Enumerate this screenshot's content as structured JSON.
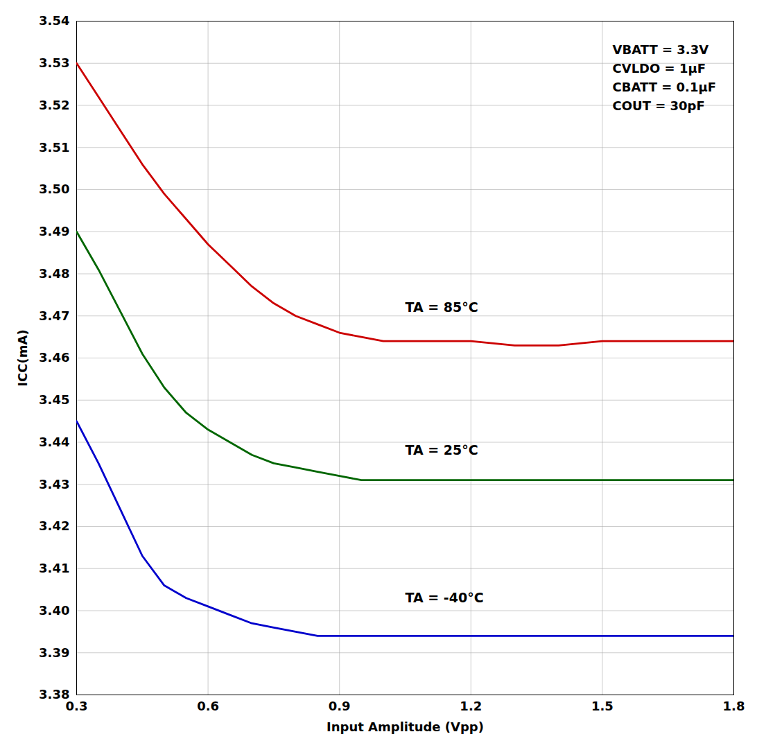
{
  "chart_data": {
    "type": "line",
    "xlabel": "Input Amplitude (Vpp)",
    "ylabel": "ICC(mA)",
    "x": [
      0.3,
      0.35,
      0.4,
      0.45,
      0.5,
      0.55,
      0.6,
      0.65,
      0.7,
      0.75,
      0.8,
      0.85,
      0.9,
      0.95,
      1.0,
      1.05,
      1.1,
      1.2,
      1.3,
      1.4,
      1.5,
      1.6,
      1.7,
      1.8
    ],
    "series": [
      {
        "color": "#cc0000",
        "values": [
          3.53,
          3.522,
          3.514,
          3.506,
          3.499,
          3.493,
          3.487,
          3.482,
          3.477,
          3.473,
          3.47,
          3.468,
          3.466,
          3.465,
          3.464,
          3.464,
          3.464,
          3.464,
          3.463,
          3.463,
          3.464,
          3.464,
          3.464,
          3.464
        ]
      },
      {
        "color": "#006600",
        "values": [
          3.49,
          3.481,
          3.471,
          3.461,
          3.453,
          3.447,
          3.443,
          3.44,
          3.437,
          3.435,
          3.434,
          3.433,
          3.432,
          3.431,
          3.431,
          3.431,
          3.431,
          3.431,
          3.431,
          3.431,
          3.431,
          3.431,
          3.431,
          3.431
        ]
      },
      {
        "color": "#0000cc",
        "values": [
          3.445,
          3.435,
          3.424,
          3.413,
          3.406,
          3.403,
          3.401,
          3.399,
          3.397,
          3.396,
          3.395,
          3.394,
          3.394,
          3.394,
          3.394,
          3.394,
          3.394,
          3.394,
          3.394,
          3.394,
          3.394,
          3.394,
          3.394,
          3.394
        ]
      }
    ],
    "xlim": [
      0.3,
      1.8
    ],
    "xticks": [
      0.3,
      0.6,
      0.9,
      1.2,
      1.5,
      1.8
    ],
    "ylim": [
      3.38,
      3.54
    ],
    "yticks": [
      3.38,
      3.39,
      {
        "value": 3.4,
        "label": "3.40"
      },
      3.41,
      3.42,
      3.43,
      3.44,
      3.45,
      3.46,
      3.47,
      3.48,
      3.49,
      {
        "value": 3.5,
        "label": "3.50"
      },
      3.51,
      3.52,
      3.53,
      3.54
    ],
    "grid": true,
    "annotations": [
      {
        "text": "TA = 85°C",
        "x": 1.05,
        "y": 3.472
      },
      {
        "text": "TA = 25°C",
        "x": 1.05,
        "y": 3.438
      },
      {
        "text": "TA = -40°C",
        "x": 1.05,
        "y": 3.403
      },
      {
        "text": "VBATT = 3.3V\nCVLDO = 1μF\nCBATT = 0.1μF\nCOUT = 30pF"
      }
    ]
  }
}
